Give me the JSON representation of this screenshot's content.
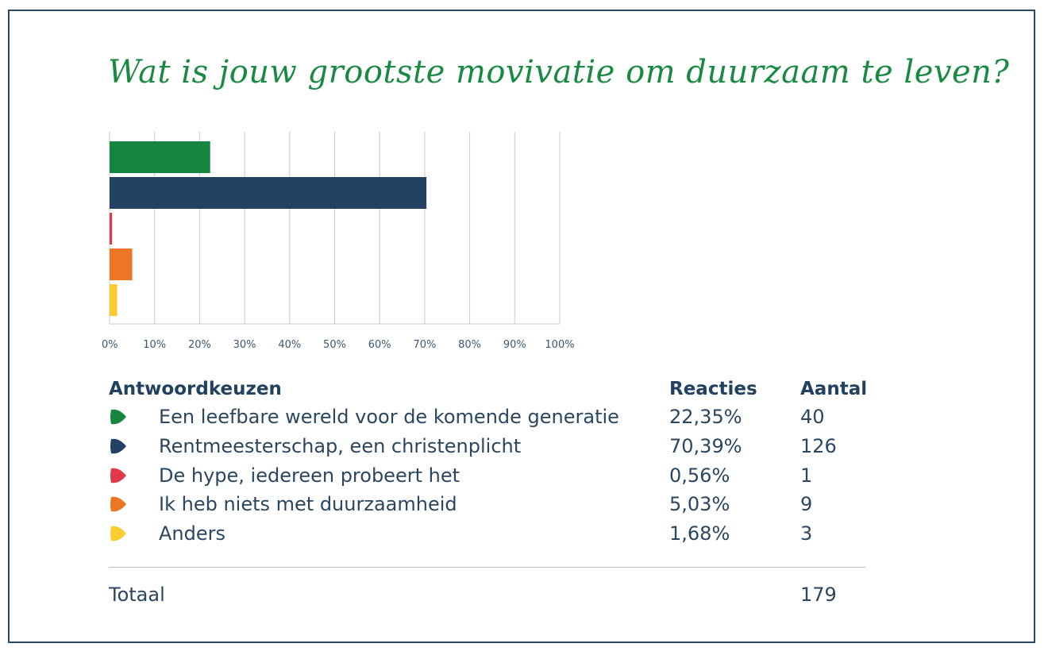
{
  "title": "Wat is jouw grootste movivatie om duurzaam te leven?",
  "chart_data": {
    "type": "bar",
    "orientation": "horizontal",
    "categories": [
      "Een leefbare wereld voor de komende generatie",
      "Rentmeesterschap, een christenplicht",
      "De hype, iedereen probeert het",
      "Ik heb niets met duurzaamheid",
      "Anders"
    ],
    "values": [
      22.35,
      70.39,
      0.56,
      5.03,
      1.68
    ],
    "colors": [
      "#15853f",
      "#234163",
      "#e03a4a",
      "#ec7623",
      "#fbcc2e"
    ],
    "xlim": [
      0,
      100
    ],
    "xticks": [
      "0%",
      "10%",
      "20%",
      "30%",
      "40%",
      "50%",
      "60%",
      "70%",
      "80%",
      "90%",
      "100%"
    ],
    "grid": true
  },
  "table": {
    "headers": {
      "choice": "Antwoordkeuzen",
      "responses": "Reacties",
      "count": "Aantal"
    },
    "rows": [
      {
        "label": "Een leefbare wereld voor de komende generatie",
        "pct": "22,35%",
        "count": "40"
      },
      {
        "label": "Rentmeesterschap, een christenplicht",
        "pct": "70,39%",
        "count": "126"
      },
      {
        "label": "De hype, iedereen probeert het",
        "pct": "0,56%",
        "count": "1"
      },
      {
        "label": "Ik heb niets met duurzaamheid",
        "pct": "5,03%",
        "count": "9"
      },
      {
        "label": "Anders",
        "pct": "1,68%",
        "count": "3"
      }
    ],
    "total_label": "Totaal",
    "total_count": "179"
  }
}
